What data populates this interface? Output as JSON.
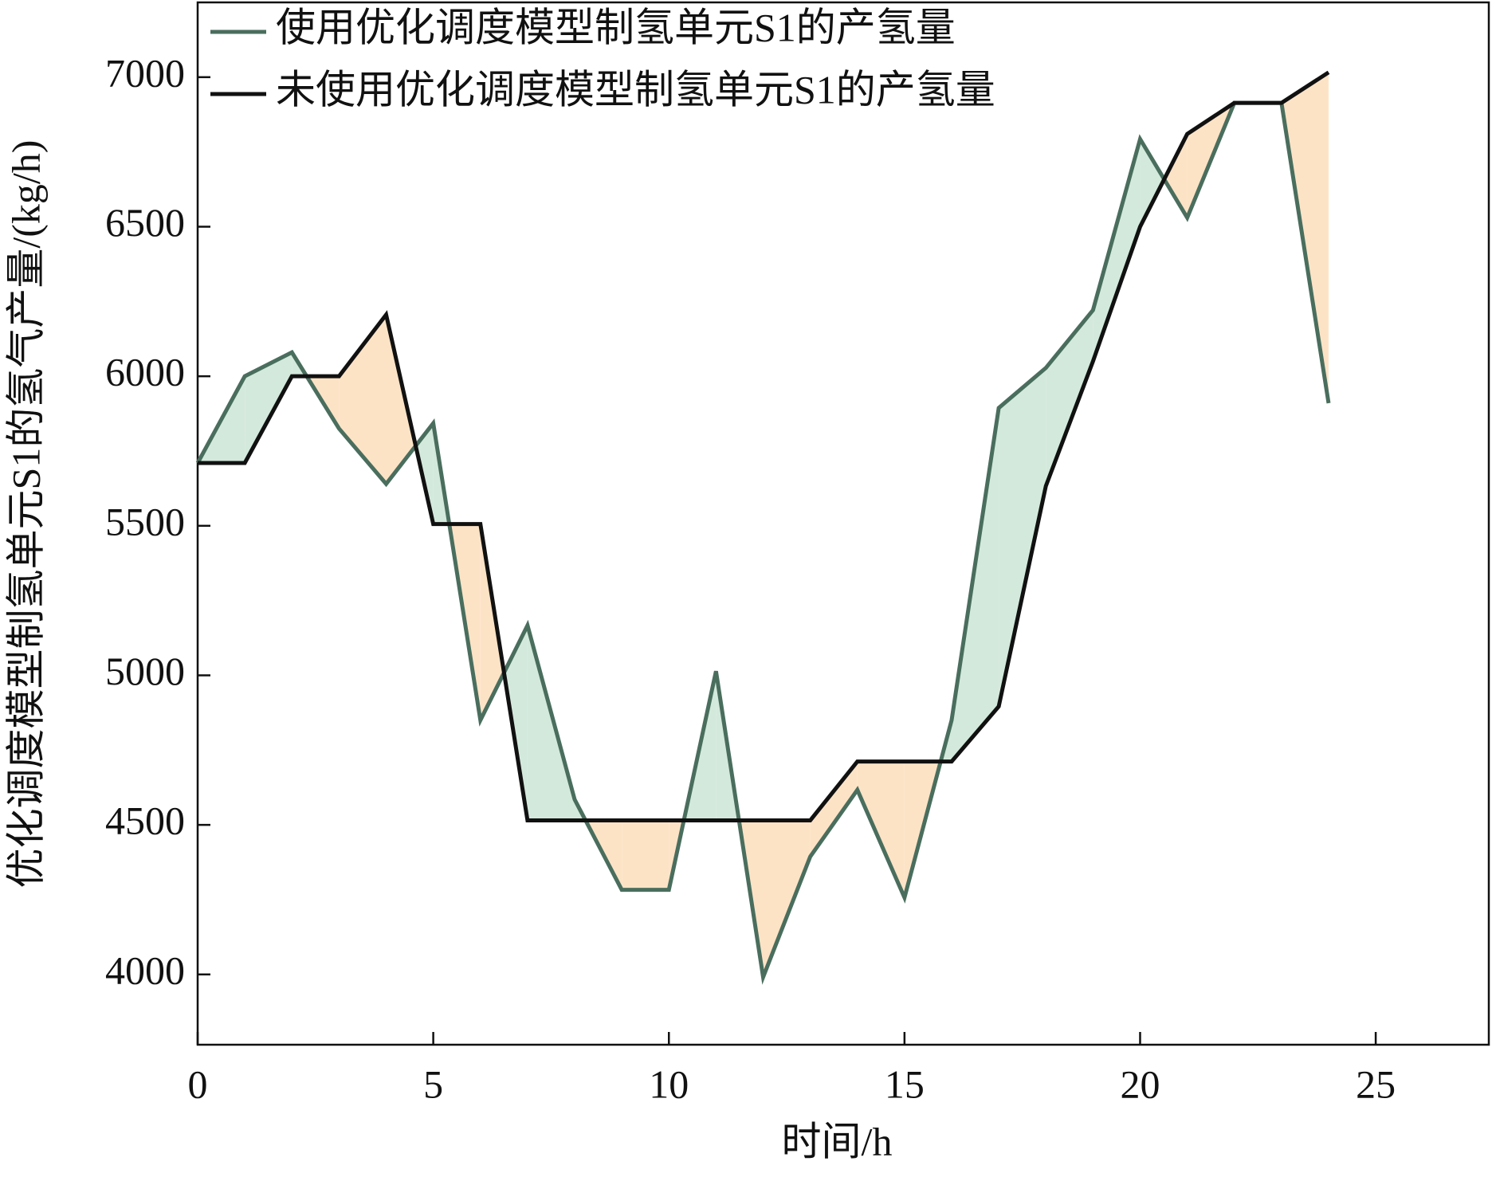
{
  "chart_data": {
    "type": "line",
    "fill_between": true,
    "x_label": "时间/h",
    "y_label": "优化调度模型制氢单元S1的氢气产量/(kg/h)",
    "x": [
      0,
      1,
      2,
      3,
      4,
      5,
      6,
      7,
      8,
      9,
      10,
      11,
      12,
      13,
      14,
      15,
      16,
      17,
      18,
      19,
      20,
      21,
      22,
      23,
      24
    ],
    "series": [
      {
        "name": "使用优化调度模型制氢单元S1的产氢量",
        "color": "#4a6e5e",
        "values": [
          5710,
          6000,
          6080,
          5825,
          5640,
          5843,
          4850,
          5167,
          4585,
          4283,
          4283,
          5014,
          3991,
          4394,
          4617,
          4257,
          4850,
          5894,
          6028,
          6221,
          6793,
          6530,
          6914,
          6914,
          5910
        ]
      },
      {
        "name": "未使用优化调度模型制氢单元S1的产氢量",
        "color": "#111111",
        "values": [
          5710,
          5710,
          6000,
          6000,
          6206,
          5506,
          5506,
          4515,
          4515,
          4515,
          4515,
          4515,
          4515,
          4515,
          4712,
          4712,
          4712,
          4896,
          5633,
          6050,
          6500,
          6810,
          6914,
          6914,
          7016
        ]
      }
    ],
    "fill_above_color": "#d3e9dc",
    "fill_below_color": "#fde3c6",
    "xlim": [
      0,
      27.4
    ],
    "ylim": [
      3765,
      7250
    ],
    "xticks": [
      0,
      5,
      10,
      15,
      20,
      25
    ],
    "yticks": [
      4000,
      4500,
      5000,
      5500,
      6000,
      6500,
      7000
    ],
    "legend": "upper left",
    "grid": false
  }
}
